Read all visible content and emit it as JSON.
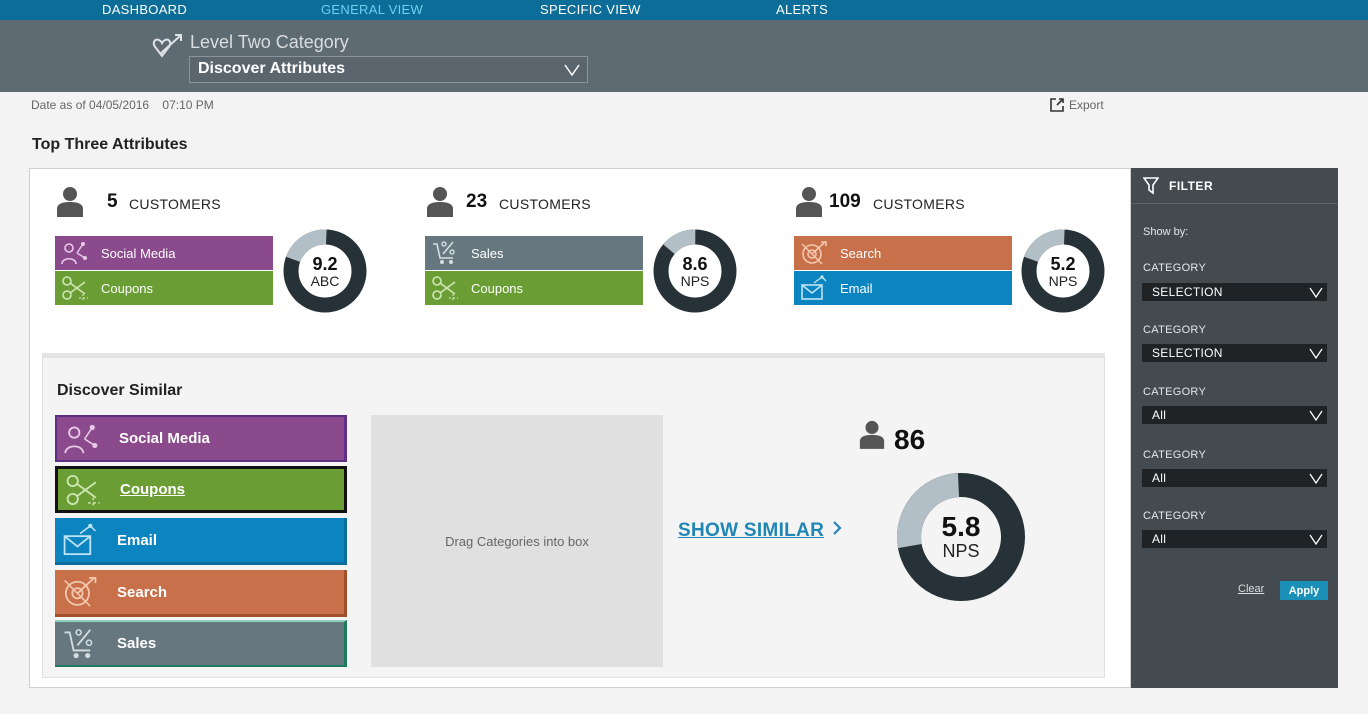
{
  "nav": {
    "items": [
      {
        "label": "DASHBOARD",
        "active": false
      },
      {
        "label": "GENERAL VIEW",
        "active": true
      },
      {
        "label": "SPECIFIC VIEW",
        "active": false
      },
      {
        "label": "ALERTS",
        "active": false
      }
    ]
  },
  "header": {
    "logo_icon": "heart-arrow-icon",
    "title": "Level Two Category",
    "select_value": "Discover Attributes"
  },
  "meta": {
    "date_text": "Date as of 04/05/2016    07:10 PM",
    "export_label": "Export"
  },
  "top_three": {
    "title": "Top Three Attributes",
    "tiles": [
      {
        "count": "5",
        "count_label": "CUSTOMERS",
        "attributes": [
          {
            "label": "Social Media",
            "color": "#8a4a8c",
            "icon": "social-media-icon"
          },
          {
            "label": "Coupons",
            "color": "#6a9e35",
            "icon": "coupons-icon"
          }
        ],
        "score": "9.2",
        "score_label": "ABC",
        "score_fraction": 0.2
      },
      {
        "count": "23",
        "count_label": "CUSTOMERS",
        "attributes": [
          {
            "label": "Sales",
            "color": "#667780",
            "icon": "sales-icon"
          },
          {
            "label": "Coupons",
            "color": "#6a9e35",
            "icon": "coupons-icon"
          }
        ],
        "score": "8.6",
        "score_label": "NPS",
        "score_fraction": 0.14
      },
      {
        "count": "109",
        "count_label": "CUSTOMERS",
        "attributes": [
          {
            "label": "Search",
            "color": "#c8704a",
            "icon": "search-target-icon"
          },
          {
            "label": "Email",
            "color": "#0b84c0",
            "icon": "email-icon"
          }
        ],
        "score": "5.2",
        "score_label": "NPS",
        "score_fraction": 0.2
      }
    ]
  },
  "discover_similar": {
    "title": "Discover Similar",
    "categories": [
      {
        "label": "Social Media",
        "color": "#8a4a8c",
        "border": "#5e2f86",
        "icon": "social-media-icon",
        "selected": false
      },
      {
        "label": "Coupons",
        "color": "#6a9e35",
        "border": "#111111",
        "icon": "coupons-icon",
        "selected": true
      },
      {
        "label": "Email",
        "color": "#0b84c0",
        "border": "#0a6d9c",
        "icon": "email-icon",
        "selected": false
      },
      {
        "label": "Search",
        "color": "#c8704a",
        "border": "#a2502a",
        "icon": "search-target-icon",
        "selected": false
      },
      {
        "label": "Sales",
        "color": "#667780",
        "border": "#1f7a5c",
        "icon": "sales-icon",
        "selected": false
      }
    ],
    "dropbox_text": "Drag Categories into box",
    "show_similar_label": "SHOW SIMILAR",
    "result_count": "86",
    "result_score": "5.8",
    "result_score_label": "NPS",
    "result_fraction": 0.27
  },
  "filter": {
    "title": "FILTER",
    "show_by": "Show by:",
    "fields": [
      {
        "label": "CATEGORY",
        "value": "SELECTION"
      },
      {
        "label": "CATEGORY",
        "value": "SELECTION"
      },
      {
        "label": "CATEGORY",
        "value": "All"
      },
      {
        "label": "CATEGORY",
        "value": "All"
      },
      {
        "label": "CATEGORY",
        "value": "All"
      }
    ],
    "clear_label": "Clear",
    "apply_label": "Apply"
  },
  "colors": {
    "nav_bg": "#0c6e98",
    "header_bg": "#5f6b73",
    "donut_dark": "#273238",
    "donut_light": "#b3bfc6",
    "filter_bg": "#444b50",
    "accent": "#1f86b5"
  }
}
